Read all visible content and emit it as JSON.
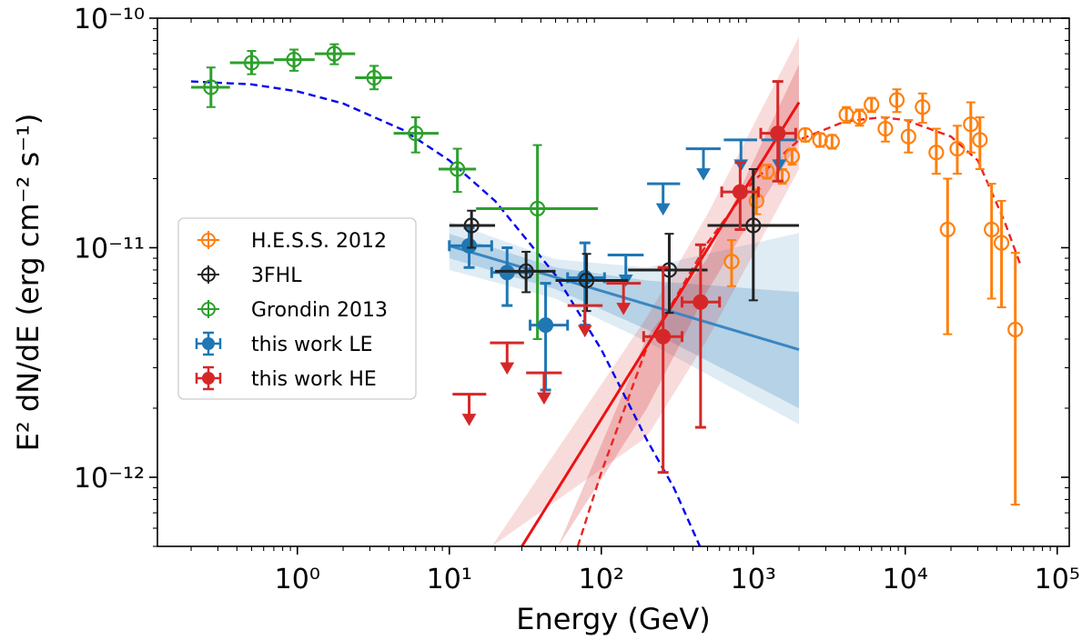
{
  "chart_data": {
    "type": "scatter",
    "title": "",
    "xlabel": "Energy (GeV)",
    "ylabel": "E² dN/dE (erg cm⁻² s⁻¹)",
    "xscale": "log",
    "yscale": "log",
    "xlim": [
      0.12,
      120000
    ],
    "ylim": [
      5e-13,
      1e-10
    ],
    "x_ticks": [
      {
        "value": 1,
        "label": "10⁰"
      },
      {
        "value": 10,
        "label": "10¹"
      },
      {
        "value": 100,
        "label": "10²"
      },
      {
        "value": 1000,
        "label": "10³"
      },
      {
        "value": 10000,
        "label": "10⁴"
      },
      {
        "value": 100000,
        "label": "10⁵"
      }
    ],
    "y_ticks": [
      {
        "value": 1e-12,
        "label": "10⁻¹²"
      },
      {
        "value": 1e-11,
        "label": "10⁻¹¹"
      },
      {
        "value": 1e-10,
        "label": "10⁻¹⁰"
      }
    ],
    "legend_position": "center-left",
    "colors": {
      "hess": "#ff7f0e",
      "fhl": "#222222",
      "grondin": "#2ca02c",
      "le": "#1f77b4",
      "he": "#d62728"
    },
    "series": [
      {
        "key": "hess",
        "name": "H.E.S.S. 2012",
        "marker": "open-circle",
        "points": [
          {
            "x": 720,
            "y": 8.7e-12,
            "ylo": 6.8e-12,
            "yhi": 1.08e-11
          },
          {
            "x": 1050,
            "y": 1.6e-11,
            "ylo": 1.4e-11,
            "yhi": 1.8e-11
          },
          {
            "x": 1230,
            "y": 2.15e-11,
            "ylo": 2e-11,
            "yhi": 2.3e-11
          },
          {
            "x": 1550,
            "y": 2.05e-11,
            "ylo": 1.9e-11,
            "yhi": 2.2e-11
          },
          {
            "x": 1800,
            "y": 2.5e-11,
            "ylo": 2.3e-11,
            "yhi": 2.7e-11
          },
          {
            "x": 2200,
            "y": 3.1e-11,
            "ylo": 2.9e-11,
            "yhi": 3.3e-11
          },
          {
            "x": 2750,
            "y": 2.95e-11,
            "ylo": 2.75e-11,
            "yhi": 3.15e-11
          },
          {
            "x": 3300,
            "y": 2.9e-11,
            "ylo": 2.7e-11,
            "yhi": 3.1e-11
          },
          {
            "x": 4100,
            "y": 3.8e-11,
            "ylo": 3.5e-11,
            "yhi": 4.1e-11
          },
          {
            "x": 5000,
            "y": 3.7e-11,
            "ylo": 3.4e-11,
            "yhi": 4e-11
          },
          {
            "x": 6000,
            "y": 4.2e-11,
            "ylo": 3.9e-11,
            "yhi": 4.5e-11
          },
          {
            "x": 7400,
            "y": 3.3e-11,
            "ylo": 2.9e-11,
            "yhi": 3.7e-11
          },
          {
            "x": 8800,
            "y": 4.4e-11,
            "ylo": 3.9e-11,
            "yhi": 4.9e-11
          },
          {
            "x": 10500,
            "y": 3.05e-11,
            "ylo": 2.6e-11,
            "yhi": 3.6e-11
          },
          {
            "x": 13000,
            "y": 4.1e-11,
            "ylo": 3.5e-11,
            "yhi": 4.7e-11
          },
          {
            "x": 16000,
            "y": 2.6e-11,
            "ylo": 2.1e-11,
            "yhi": 3.3e-11
          },
          {
            "x": 19000,
            "y": 1.2e-11,
            "ylo": 4.2e-12,
            "yhi": 2e-11
          },
          {
            "x": 22000,
            "y": 2.7e-11,
            "ylo": 2.1e-11,
            "yhi": 3.4e-11
          },
          {
            "x": 27000,
            "y": 3.45e-11,
            "ylo": 2.6e-11,
            "yhi": 4.3e-11
          },
          {
            "x": 31000,
            "y": 2.95e-11,
            "ylo": 2.2e-11,
            "yhi": 3.7e-11
          },
          {
            "x": 37000,
            "y": 1.2e-11,
            "ylo": 6e-12,
            "yhi": 1.9e-11
          },
          {
            "x": 43000,
            "y": 1.05e-11,
            "ylo": 5.5e-12,
            "yhi": 1.6e-11
          },
          {
            "x": 53000,
            "y": 4.4e-12,
            "ylo": 7.6e-13,
            "yhi": 9.5e-12
          }
        ]
      },
      {
        "key": "fhl",
        "name": "3FHL",
        "marker": "open-circle",
        "points": [
          {
            "x": 14,
            "y": 1.25e-11,
            "xlo": 10,
            "xhi": 20,
            "ylo": 1e-11,
            "yhi": 1.45e-11
          },
          {
            "x": 32,
            "y": 7.9e-12,
            "xlo": 20,
            "xhi": 50,
            "ylo": 6.4e-12,
            "yhi": 9.6e-12
          },
          {
            "x": 80,
            "y": 7.2e-12,
            "xlo": 50,
            "xhi": 150,
            "ylo": 5.3e-12,
            "yhi": 9.4e-12
          },
          {
            "x": 280,
            "y": 8e-12,
            "xlo": 150,
            "xhi": 500,
            "ylo": 5.2e-12,
            "yhi": 1.15e-11
          },
          {
            "x": 1000,
            "y": 1.25e-11,
            "xlo": 500,
            "xhi": 2000,
            "ylo": 5.9e-12,
            "yhi": 2.2e-11
          }
        ]
      },
      {
        "key": "grondin",
        "name": "Grondin 2013",
        "marker": "open-circle",
        "points": [
          {
            "x": 0.27,
            "y": 5e-11,
            "xlo": 0.2,
            "xhi": 0.36,
            "ylo": 4.1e-11,
            "yhi": 6.1e-11
          },
          {
            "x": 0.5,
            "y": 6.4e-11,
            "xlo": 0.36,
            "xhi": 0.7,
            "ylo": 5.7e-11,
            "yhi": 7.2e-11
          },
          {
            "x": 0.95,
            "y": 6.6e-11,
            "xlo": 0.7,
            "xhi": 1.3,
            "ylo": 5.9e-11,
            "yhi": 7.3e-11
          },
          {
            "x": 1.75,
            "y": 7e-11,
            "xlo": 1.3,
            "xhi": 2.4,
            "ylo": 6.3e-11,
            "yhi": 7.7e-11
          },
          {
            "x": 3.2,
            "y": 5.5e-11,
            "xlo": 2.4,
            "xhi": 4.2,
            "ylo": 4.9e-11,
            "yhi": 6.2e-11
          },
          {
            "x": 6.0,
            "y": 3.15e-11,
            "xlo": 4.3,
            "xhi": 8.5,
            "ylo": 2.6e-11,
            "yhi": 3.7e-11
          },
          {
            "x": 11.3,
            "y": 2.2e-11,
            "xlo": 8.5,
            "xhi": 15,
            "ylo": 1.75e-11,
            "yhi": 2.7e-11
          },
          {
            "x": 38,
            "y": 1.48e-11,
            "xlo": 15,
            "xhi": 95,
            "ylo": 4e-12,
            "yhi": 2.8e-11
          }
        ]
      },
      {
        "key": "le",
        "name": "this work LE",
        "marker": "filled-circle",
        "points": [
          {
            "x": 13.5,
            "y": 1.02e-11,
            "xlo": 10,
            "xhi": 19,
            "ylo": 8.2e-12,
            "yhi": 1.22e-11
          },
          {
            "x": 24,
            "y": 7.8e-12,
            "xlo": 19,
            "xhi": 34,
            "ylo": 5.6e-12,
            "yhi": 1e-11
          },
          {
            "x": 43,
            "y": 4.6e-12,
            "xlo": 34,
            "xhi": 60,
            "ylo": 2.4e-12,
            "yhi": 7e-12
          },
          {
            "x": 78,
            "y": 7.4e-12,
            "xlo": 60,
            "xhi": 105,
            "ylo": 4.6e-12,
            "yhi": 1.05e-11
          }
        ],
        "upper_limits": [
          {
            "x": 145,
            "y": 9.3e-12,
            "xlo": 110,
            "xhi": 190
          },
          {
            "x": 255,
            "y": 1.9e-11,
            "xlo": 200,
            "xhi": 330
          },
          {
            "x": 470,
            "y": 2.7e-11,
            "xlo": 360,
            "xhi": 610
          },
          {
            "x": 830,
            "y": 2.95e-11,
            "xlo": 640,
            "xhi": 1060
          },
          {
            "x": 1480,
            "y": 2.95e-11,
            "xlo": 1130,
            "xhi": 1930
          }
        ],
        "fit": {
          "x0": 10,
          "y0": 1.02e-11,
          "x1": 2000,
          "y1": 3.6e-12
        },
        "band_inner": [
          {
            "x": 10,
            "lo": 9e-12,
            "hi": 1.15e-11
          },
          {
            "x": 50,
            "lo": 6.6e-12,
            "hi": 8.2e-12
          },
          {
            "x": 200,
            "lo": 4.4e-12,
            "hi": 7.2e-12
          },
          {
            "x": 2000,
            "lo": 2e-12,
            "hi": 6.4e-12
          }
        ],
        "band_outer": [
          {
            "x": 10,
            "lo": 8e-12,
            "hi": 1.3e-11
          },
          {
            "x": 50,
            "lo": 6e-12,
            "hi": 8.9e-12
          },
          {
            "x": 200,
            "lo": 3.9e-12,
            "hi": 8.2e-12
          },
          {
            "x": 2000,
            "lo": 1.7e-12,
            "hi": 1.16e-11
          }
        ]
      },
      {
        "key": "he",
        "name": "this work HE",
        "marker": "filled-circle",
        "points": [
          {
            "x": 255,
            "y": 4.1e-12,
            "xlo": 190,
            "xhi": 340,
            "ylo": 1.05e-12,
            "yhi": 8.2e-12
          },
          {
            "x": 450,
            "y": 5.8e-12,
            "xlo": 340,
            "xhi": 600,
            "ylo": 1.65e-12,
            "yhi": 1.03e-11
          },
          {
            "x": 820,
            "y": 1.75e-11,
            "xlo": 620,
            "xhi": 1080,
            "ylo": 1.2e-11,
            "yhi": 2.35e-11
          },
          {
            "x": 1450,
            "y": 3.15e-11,
            "xlo": 1120,
            "xhi": 1900,
            "ylo": 1.95e-11,
            "yhi": 5.3e-11
          }
        ],
        "upper_limits": [
          {
            "x": 13.5,
            "y": 2.3e-12,
            "xlo": 10.5,
            "xhi": 17.5
          },
          {
            "x": 24,
            "y": 3.85e-12,
            "xlo": 18.5,
            "xhi": 31
          },
          {
            "x": 42,
            "y": 2.85e-12,
            "xlo": 32,
            "xhi": 55
          },
          {
            "x": 78,
            "y": 5.6e-12,
            "xlo": 60,
            "xhi": 102
          },
          {
            "x": 140,
            "y": 7e-12,
            "xlo": 108,
            "xhi": 182
          }
        ],
        "fit": {
          "x0": 30,
          "y0": 5e-13,
          "x1": 2000,
          "y1": 4.3e-11
        },
        "band_inner": [
          {
            "x": 52,
            "lo": 5e-13,
            "hi": 5e-13
          },
          {
            "x": 200,
            "lo": 2e-12,
            "hi": 4.1e-12
          },
          {
            "x": 500,
            "lo": 6.5e-12,
            "hi": 9e-12
          },
          {
            "x": 2000,
            "lo": 2.9e-11,
            "hi": 6.3e-11
          }
        ],
        "band_outer": [
          {
            "x": 19,
            "lo": 5e-13,
            "hi": 5e-13
          },
          {
            "x": 200,
            "lo": 1.5e-12,
            "hi": 5e-12
          },
          {
            "x": 500,
            "lo": 4e-12,
            "hi": 1.4e-11
          },
          {
            "x": 2000,
            "lo": 2.2e-11,
            "hi": 8.3e-11
          }
        ]
      }
    ],
    "model_curves": [
      {
        "name": "low-energy cutoff model",
        "color": "#0000ee",
        "style": "dashed",
        "points": [
          [
            0.2,
            5.3e-11
          ],
          [
            0.5,
            5.15e-11
          ],
          [
            1,
            4.8e-11
          ],
          [
            2,
            4.25e-11
          ],
          [
            5,
            3.25e-11
          ],
          [
            10,
            2.4e-11
          ],
          [
            20,
            1.6e-11
          ],
          [
            50,
            7.6e-12
          ],
          [
            100,
            3.6e-12
          ],
          [
            200,
            1.45e-12
          ],
          [
            300,
            9e-13
          ],
          [
            445,
            5e-13
          ]
        ]
      },
      {
        "name": "high-energy curved model",
        "color": "#ee2222",
        "style": "dashed",
        "points": [
          [
            70,
            5e-13
          ],
          [
            100,
            1.05e-12
          ],
          [
            200,
            3.7e-12
          ],
          [
            500,
            1.05e-11
          ],
          [
            1000,
            1.95e-11
          ],
          [
            2000,
            2.95e-11
          ],
          [
            4000,
            3.55e-11
          ],
          [
            7000,
            3.7e-11
          ],
          [
            10000,
            3.6e-11
          ],
          [
            20000,
            3.05e-11
          ],
          [
            30000,
            2.4e-11
          ],
          [
            45000,
            1.3e-11
          ],
          [
            57000,
            8.5e-12
          ]
        ]
      }
    ]
  }
}
